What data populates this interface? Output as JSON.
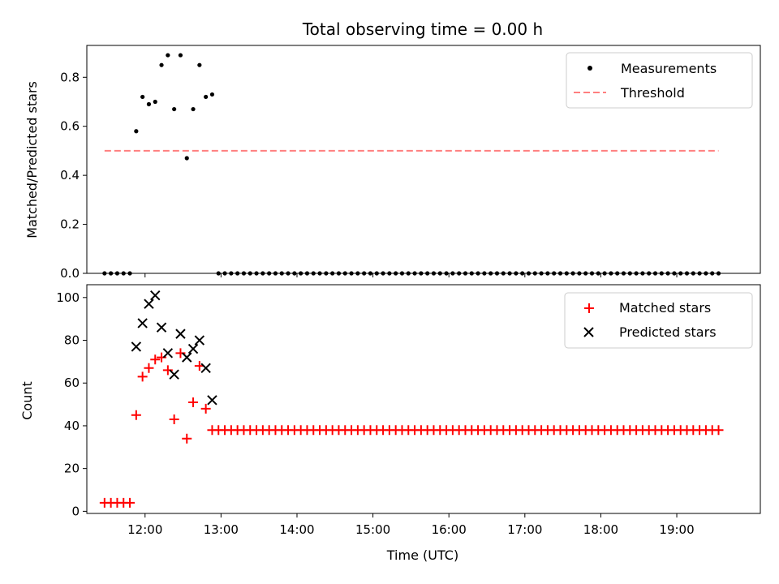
{
  "chart_data": [
    {
      "type": "scatter",
      "title": "Total observing time = 0.00 h",
      "ylabel": "Matched/Predicted stars",
      "ylim": [
        0,
        0.93
      ],
      "yticks": [
        "0.0",
        "0.2",
        "0.4",
        "0.6",
        "0.8"
      ],
      "xlim": [
        "11:14",
        "20:06"
      ],
      "legend_position": "top-right",
      "series": [
        {
          "name": "Measurements",
          "marker": "dot",
          "color": "#000000",
          "x": [
            "11:28",
            "11:33",
            "11:38",
            "11:43",
            "11:48",
            "11:53",
            "11:58",
            "12:03",
            "12:08",
            "12:13",
            "12:18",
            "12:23",
            "12:28",
            "12:33",
            "12:38",
            "12:43",
            "12:48",
            "12:53",
            "12:58",
            "13:03",
            "13:08",
            "13:13",
            "13:18",
            "13:23",
            "13:28",
            "13:33",
            "13:38",
            "13:43",
            "13:48",
            "13:53",
            "13:58",
            "14:03",
            "14:08",
            "14:13",
            "14:18",
            "14:23",
            "14:28",
            "14:33",
            "14:38",
            "14:43",
            "14:48",
            "14:53",
            "14:58",
            "15:03",
            "15:08",
            "15:13",
            "15:18",
            "15:23",
            "15:28",
            "15:33",
            "15:38",
            "15:43",
            "15:48",
            "15:53",
            "15:58",
            "16:03",
            "16:08",
            "16:13",
            "16:18",
            "16:23",
            "16:28",
            "16:33",
            "16:38",
            "16:43",
            "16:48",
            "16:53",
            "16:58",
            "17:03",
            "17:08",
            "17:13",
            "17:18",
            "17:23",
            "17:28",
            "17:33",
            "17:38",
            "17:43",
            "17:48",
            "17:53",
            "17:58",
            "18:03",
            "18:08",
            "18:13",
            "18:18",
            "18:23",
            "18:28",
            "18:33",
            "18:38",
            "18:43",
            "18:48",
            "18:53",
            "18:58",
            "19:03",
            "19:08",
            "19:13",
            "19:18",
            "19:23",
            "19:28",
            "19:33"
          ],
          "y": [
            0,
            0,
            0,
            0,
            0,
            0.58,
            0.72,
            0.69,
            0.7,
            0.85,
            0.89,
            0.67,
            0.89,
            0.47,
            0.67,
            0.85,
            0.72,
            0.73,
            0,
            0,
            0,
            0,
            0,
            0,
            0,
            0,
            0,
            0,
            0,
            0,
            0,
            0,
            0,
            0,
            0,
            0,
            0,
            0,
            0,
            0,
            0,
            0,
            0,
            0,
            0,
            0,
            0,
            0,
            0,
            0,
            0,
            0,
            0,
            0,
            0,
            0,
            0,
            0,
            0,
            0,
            0,
            0,
            0,
            0,
            0,
            0,
            0,
            0,
            0,
            0,
            0,
            0,
            0,
            0,
            0,
            0,
            0,
            0,
            0,
            0,
            0,
            0,
            0,
            0,
            0,
            0,
            0,
            0,
            0,
            0,
            0,
            0,
            0,
            0,
            0,
            0,
            0,
            0
          ]
        },
        {
          "name": "Threshold",
          "marker": "dashed-line",
          "color": "#ff7f7f",
          "x": [
            "11:28",
            "19:33"
          ],
          "y": [
            0.5,
            0.5
          ]
        }
      ]
    },
    {
      "type": "scatter",
      "xlabel": "Time (UTC)",
      "ylabel": "Count",
      "ylim": [
        -1,
        106
      ],
      "yticks": [
        "0",
        "20",
        "40",
        "60",
        "80",
        "100"
      ],
      "xlim": [
        "11:14",
        "20:06"
      ],
      "xticks": [
        "12:00",
        "13:00",
        "14:00",
        "15:00",
        "16:00",
        "17:00",
        "18:00",
        "19:00"
      ],
      "legend_position": "top-right",
      "series": [
        {
          "name": "Matched stars",
          "marker": "plus",
          "color": "#ff0000",
          "x": [
            "11:28",
            "11:33",
            "11:38",
            "11:43",
            "11:48",
            "11:53",
            "11:58",
            "12:03",
            "12:08",
            "12:13",
            "12:18",
            "12:23",
            "12:28",
            "12:33",
            "12:38",
            "12:43",
            "12:48",
            "12:53",
            "12:58",
            "13:03",
            "13:08",
            "13:13",
            "13:18",
            "13:23",
            "13:28",
            "13:33",
            "13:38",
            "13:43",
            "13:48",
            "13:53",
            "13:58",
            "14:03",
            "14:08",
            "14:13",
            "14:18",
            "14:23",
            "14:28",
            "14:33",
            "14:38",
            "14:43",
            "14:48",
            "14:53",
            "14:58",
            "15:03",
            "15:08",
            "15:13",
            "15:18",
            "15:23",
            "15:28",
            "15:33",
            "15:38",
            "15:43",
            "15:48",
            "15:53",
            "15:58",
            "16:03",
            "16:08",
            "16:13",
            "16:18",
            "16:23",
            "16:28",
            "16:33",
            "16:38",
            "16:43",
            "16:48",
            "16:53",
            "16:58",
            "17:03",
            "17:08",
            "17:13",
            "17:18",
            "17:23",
            "17:28",
            "17:33",
            "17:38",
            "17:43",
            "17:48",
            "17:53",
            "17:58",
            "18:03",
            "18:08",
            "18:13",
            "18:18",
            "18:23",
            "18:28",
            "18:33",
            "18:38",
            "18:43",
            "18:48",
            "18:53",
            "18:58",
            "19:03",
            "19:08",
            "19:13",
            "19:18",
            "19:23",
            "19:28",
            "19:33"
          ],
          "y": [
            4,
            4,
            4,
            4,
            4,
            45,
            63,
            67,
            71,
            72,
            66,
            43,
            74,
            34,
            51,
            68,
            48,
            38,
            38,
            38,
            38,
            38,
            38,
            38,
            38,
            38,
            38,
            38,
            38,
            38,
            38,
            38,
            38,
            38,
            38,
            38,
            38,
            38,
            38,
            38,
            38,
            38,
            38,
            38,
            38,
            38,
            38,
            38,
            38,
            38,
            38,
            38,
            38,
            38,
            38,
            38,
            38,
            38,
            38,
            38,
            38,
            38,
            38,
            38,
            38,
            38,
            38,
            38,
            38,
            38,
            38,
            38,
            38,
            38,
            38,
            38,
            38,
            38,
            38,
            38,
            38,
            38,
            38,
            38,
            38,
            38,
            38,
            38,
            38,
            38,
            38,
            38,
            38,
            38,
            38,
            38,
            38,
            38
          ]
        },
        {
          "name": "Predicted stars",
          "marker": "x",
          "color": "#000000",
          "x": [
            "11:53",
            "11:58",
            "12:03",
            "12:08",
            "12:13",
            "12:18",
            "12:23",
            "12:28",
            "12:33",
            "12:38",
            "12:43",
            "12:48",
            "12:53"
          ],
          "y": [
            77,
            88,
            97,
            101,
            86,
            74,
            64,
            83,
            72,
            76,
            80,
            67,
            52
          ]
        }
      ]
    }
  ]
}
